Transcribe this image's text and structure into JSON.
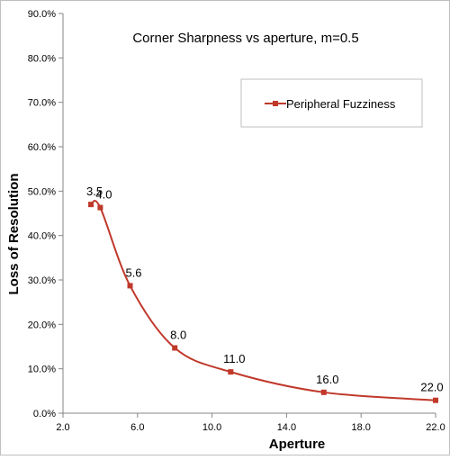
{
  "chart_data": {
    "type": "scatter",
    "title": "Corner Sharpness vs aperture, m=0.5",
    "xlabel": "Aperture",
    "ylabel": "Loss of Resolution",
    "xlim": [
      2.0,
      22.0
    ],
    "ylim": [
      0.0,
      90.0
    ],
    "x_ticks": [
      2.0,
      6.0,
      10.0,
      14.0,
      18.0,
      22.0
    ],
    "x_tick_labels": [
      "2.0",
      "6.0",
      "10.0",
      "14.0",
      "18.0",
      "22.0"
    ],
    "y_ticks": [
      0,
      10,
      20,
      30,
      40,
      50,
      60,
      70,
      80,
      90
    ],
    "y_tick_labels": [
      "0.0%",
      "10.0%",
      "20.0%",
      "30.0%",
      "40.0%",
      "50.0%",
      "60.0%",
      "70.0%",
      "80.0%",
      "90.0%"
    ],
    "grid": false,
    "smooth": true,
    "legend_position": "top-right",
    "series": [
      {
        "name": "Peripheral Fuzziness",
        "color": "#c0392b",
        "marker": "square",
        "points": [
          {
            "x": 3.5,
            "y": 47.0,
            "label": "3.5"
          },
          {
            "x": 4.0,
            "y": 46.3,
            "label": "4.0"
          },
          {
            "x": 5.6,
            "y": 28.7,
            "label": "5.6"
          },
          {
            "x": 8.0,
            "y": 14.7,
            "label": "8.0"
          },
          {
            "x": 11.0,
            "y": 9.3,
            "label": "11.0"
          },
          {
            "x": 16.0,
            "y": 4.7,
            "label": "16.0"
          },
          {
            "x": 22.0,
            "y": 2.9,
            "label": "22.0"
          }
        ]
      }
    ]
  }
}
